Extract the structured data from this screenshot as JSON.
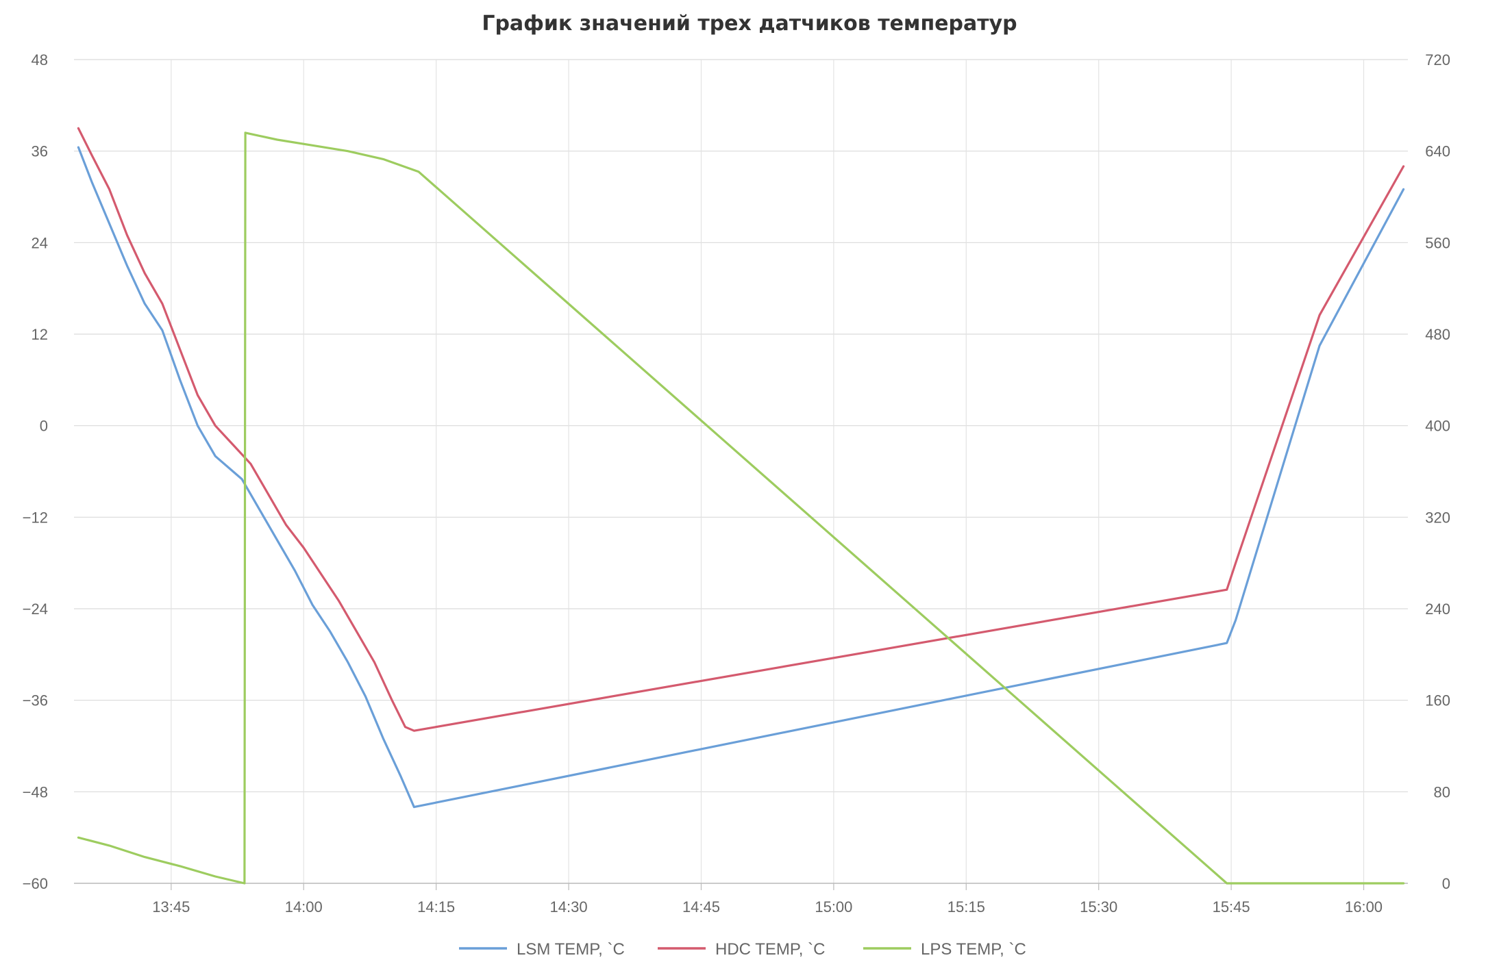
{
  "chart_data": {
    "type": "line",
    "title": "График значений трех датчиков температур",
    "xlabel": "",
    "ylabel": "",
    "x_axis": {
      "type": "time",
      "range": [
        "13:34",
        "16:05"
      ],
      "ticks": [
        "13:45",
        "14:00",
        "14:15",
        "14:30",
        "14:45",
        "15:00",
        "15:15",
        "15:30",
        "15:45",
        "16:00"
      ]
    },
    "y_left": {
      "range": [
        -60,
        48
      ],
      "ticks": [
        "48",
        "36",
        "24",
        "12",
        "0",
        "−12",
        "−24",
        "−36",
        "−48",
        "−60"
      ]
    },
    "y_right": {
      "range": [
        0,
        720
      ],
      "ticks": [
        "720",
        "640",
        "560",
        "480",
        "400",
        "320",
        "240",
        "160",
        "80",
        "0"
      ]
    },
    "grid": true,
    "legend_position": "bottom-center",
    "series": [
      {
        "name": "LSM TEMP, `C",
        "color": "#6a9fd8",
        "axis": "left",
        "points": [
          [
            "13:34.5",
            36.5
          ],
          [
            "13:36",
            32
          ],
          [
            "13:38",
            26.5
          ],
          [
            "13:40",
            21
          ],
          [
            "13:42",
            16
          ],
          [
            "13:44",
            12.5
          ],
          [
            "13:46",
            6
          ],
          [
            "13:48",
            0
          ],
          [
            "13:50",
            -4
          ],
          [
            "13:52",
            -6
          ],
          [
            "13:53",
            -7
          ],
          [
            "13:55",
            -11
          ],
          [
            "13:57",
            -15
          ],
          [
            "13:59",
            -19
          ],
          [
            "14:01",
            -23.5
          ],
          [
            "14:03",
            -27
          ],
          [
            "14:05",
            -31
          ],
          [
            "14:07",
            -35.5
          ],
          [
            "14:09",
            -41
          ],
          [
            "14:11",
            -46
          ],
          [
            "14:12.5",
            -50
          ],
          [
            "15:44.5",
            -28.5
          ],
          [
            "15:45.5",
            -25.5
          ],
          [
            "15:55",
            10.5
          ],
          [
            "16:04.5",
            31
          ]
        ]
      },
      {
        "name": "HDC TEMP, `C",
        "color": "#d45a6e",
        "axis": "left",
        "points": [
          [
            "13:34.5",
            39
          ],
          [
            "13:36",
            35.5
          ],
          [
            "13:38",
            31
          ],
          [
            "13:40",
            25
          ],
          [
            "13:42",
            20
          ],
          [
            "13:44",
            16
          ],
          [
            "13:46",
            10
          ],
          [
            "13:48",
            4
          ],
          [
            "13:50",
            0
          ],
          [
            "13:52",
            -2.5
          ],
          [
            "13:54",
            -5
          ],
          [
            "13:56",
            -9
          ],
          [
            "13:58",
            -13
          ],
          [
            "14:00",
            -16
          ],
          [
            "14:02",
            -19.5
          ],
          [
            "14:04",
            -23
          ],
          [
            "14:06",
            -27
          ],
          [
            "14:08",
            -31
          ],
          [
            "14:10",
            -36
          ],
          [
            "14:11.5",
            -39.5
          ],
          [
            "14:12.5",
            -40
          ],
          [
            "15:44.5",
            -21.5
          ],
          [
            "15:45.5",
            -18
          ],
          [
            "15:55",
            14.5
          ],
          [
            "16:04.5",
            34
          ]
        ]
      },
      {
        "name": "LPS TEMP, `C",
        "color": "#9dcc5f",
        "axis": "right",
        "points": [
          [
            "13:34.5",
            40
          ],
          [
            "13:38",
            33
          ],
          [
            "13:42",
            23
          ],
          [
            "13:46",
            15
          ],
          [
            "13:50",
            6
          ],
          [
            "13:53.3",
            0
          ],
          [
            "13:53.4",
            656
          ],
          [
            "13:57",
            650
          ],
          [
            "14:01",
            645
          ],
          [
            "14:05",
            640
          ],
          [
            "14:09",
            633
          ],
          [
            "14:13",
            622
          ],
          [
            "15:44.5",
            0
          ],
          [
            "16:04.5",
            0
          ]
        ]
      }
    ]
  }
}
